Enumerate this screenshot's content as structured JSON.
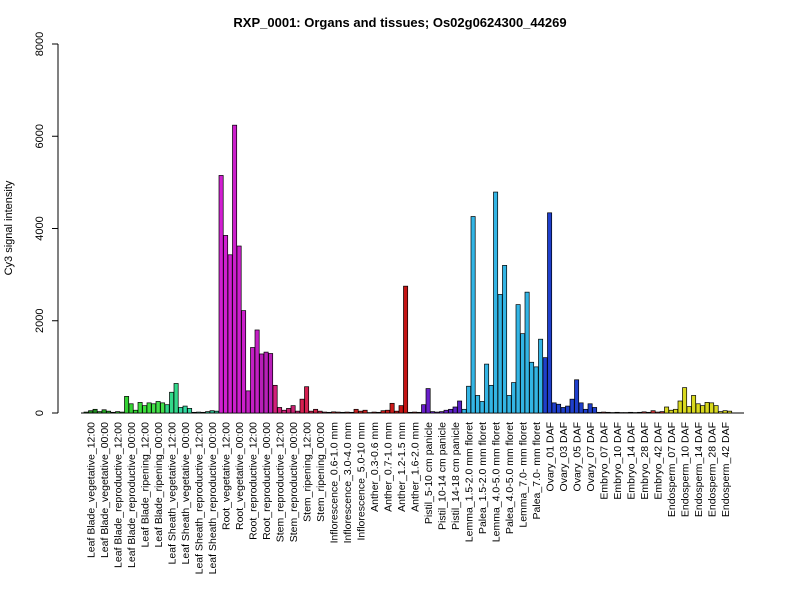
{
  "chart_data": {
    "type": "bar",
    "title": "RXP_0001: Organs and tissues; Os02g0624300_44269",
    "ylabel": "Cy3 signal intensity",
    "xlabel": "",
    "ylim": [
      0,
      8000
    ],
    "yticks": [
      0,
      2000,
      4000,
      6000,
      8000
    ],
    "grid": false,
    "categories": [
      "Leaf Blade_vegetative_12:00",
      "Leaf Blade_vegetative_00:00",
      "Leaf Blade_reproductive_12:00",
      "Leaf Blade_reproductive_00:00",
      "Leaf Blade_ripening_12:00",
      "Leaf Blade_ripening_00:00",
      "Leaf Sheath_vegetative_12:00",
      "Leaf Sheath_vegetative_00:00",
      "Leaf Sheath_reproductive_12:00",
      "Leaf Sheath_reproductive_00:00",
      "Root_vegetative_12:00",
      "Root_vegetative_00:00",
      "Root_reproductive_12:00",
      "Root_reproductive_00:00",
      "Stem_reproductive_12:00",
      "Stem_reproductive_00:00",
      "Stem_ripening_12:00",
      "Stem_ripening_00:00",
      "Inflorescence_0.6-1.0 mm",
      "Inflorescence_3.0-4.0 mm",
      "Inflorescence_5.0-10 mm",
      "Anther_0.3-0.6 mm",
      "Anther_0.7-1.0 mm",
      "Anther_1.2-1.5 mm",
      "Anther_1.6-2.0 mm",
      "Pistil_5-10 cm panicle",
      "Pistil_10-14 cm panicle",
      "Pistil_14-18 cm panicle",
      "Lemma_1.5-2.0 mm floret",
      "Palea_1.5-2.0 mm floret",
      "Lemma_4.0-5.0 mm floret",
      "Palea_4.0-5.0 mm floret",
      "Lemma_7.0- mm floret",
      "Palea_7.0- mm floret",
      "Ovary_01 DAF",
      "Ovary_03 DAF",
      "Ovary_05 DAF",
      "Ovary_07 DAF",
      "Embryo_07 DAF",
      "Embryo_10 DAF",
      "Embryo_14 DAF",
      "Embryo_28 DAF",
      "Embryo_42 DAF",
      "Endosperm_07 DAF",
      "Endosperm_10 DAF",
      "Endosperm_14 DAF",
      "Endosperm_28 DAF",
      "Endosperm_42 DAF"
    ],
    "bars_per_category": 3,
    "values": [
      [
        20,
        50,
        80
      ],
      [
        30,
        70,
        40
      ],
      [
        15,
        30,
        20
      ],
      [
        360,
        200,
        60
      ],
      [
        230,
        160,
        220
      ],
      [
        200,
        250,
        220
      ],
      [
        180,
        450,
        640
      ],
      [
        120,
        150,
        100
      ],
      [
        15,
        20,
        15
      ],
      [
        30,
        50,
        40
      ],
      [
        5150,
        3850,
        3430
      ],
      [
        6240,
        3620,
        2220
      ],
      [
        480,
        1420,
        1800
      ],
      [
        1280,
        1320,
        1290
      ],
      [
        600,
        120,
        60
      ],
      [
        100,
        160,
        40
      ],
      [
        300,
        570,
        40
      ],
      [
        80,
        40,
        20
      ],
      [
        15,
        25,
        20
      ],
      [
        15,
        20,
        15
      ],
      [
        80,
        40,
        60
      ],
      [
        10,
        20,
        15
      ],
      [
        50,
        60,
        210
      ],
      [
        40,
        160,
        2750
      ],
      [
        15,
        20,
        15
      ],
      [
        180,
        530,
        30
      ],
      [
        20,
        30,
        60
      ],
      [
        80,
        130,
        260
      ],
      [
        80,
        580,
        4260
      ],
      [
        380,
        250,
        1060
      ],
      [
        600,
        4790,
        2570
      ],
      [
        3200,
        380,
        660
      ],
      [
        2350,
        1720,
        2620
      ],
      [
        1100,
        1000,
        1600
      ],
      [
        1200,
        4340,
        220
      ],
      [
        190,
        120,
        150
      ],
      [
        300,
        720,
        220
      ],
      [
        80,
        200,
        120
      ],
      [
        15,
        20,
        15
      ],
      [
        10,
        15,
        10
      ],
      [
        10,
        15,
        10
      ],
      [
        15,
        25,
        15
      ],
      [
        50,
        20,
        30
      ],
      [
        130,
        60,
        80
      ],
      [
        260,
        550,
        140
      ],
      [
        380,
        200,
        160
      ],
      [
        230,
        220,
        160
      ],
      [
        30,
        50,
        40
      ]
    ],
    "colors": [
      "#1e8b1e",
      "#24a824",
      "#2cc22c",
      "#34d334",
      "#3ce03c",
      "#44e04a",
      "#33d98a",
      "#33d9a0",
      "#2ec6a0",
      "#2eb88e",
      "#d11fd1",
      "#cc1fcc",
      "#c41fc4",
      "#b81fb8",
      "#d21f7a",
      "#c81f70",
      "#d61f50",
      "#cc1f46",
      "#cc2222",
      "#cc2222",
      "#cc2222",
      "#cc1a1a",
      "#cc1a1a",
      "#c41414",
      "#c41414",
      "#6a1fcc",
      "#6a1fcc",
      "#5a1fc4",
      "#33b5e5",
      "#33b5e5",
      "#33b5e5",
      "#33b5e5",
      "#33b5e5",
      "#33b5e5",
      "#1f3fcc",
      "#1f3fcc",
      "#1f3fcc",
      "#1f3fcc",
      "#cc3333",
      "#cc3333",
      "#cc3333",
      "#cc3333",
      "#cc3333",
      "#d9d91f",
      "#d9d91f",
      "#d9d91f",
      "#d9d91f",
      "#d9d91f"
    ]
  }
}
